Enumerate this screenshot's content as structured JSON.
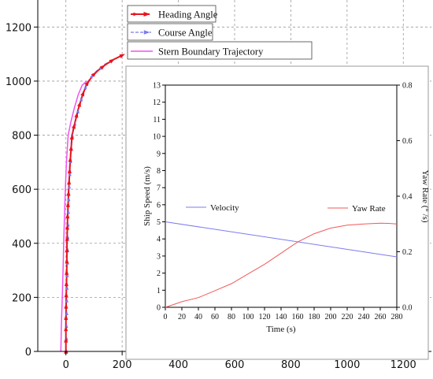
{
  "chart_data": [
    {
      "type": "line",
      "title": "",
      "xlabel": "",
      "ylabel": "",
      "xlim": [
        -100,
        1300
      ],
      "ylim": [
        0,
        1300
      ],
      "x_ticks": [
        0,
        200,
        400,
        600,
        800,
        1000,
        1200
      ],
      "y_ticks": [
        0,
        200,
        400,
        600,
        800,
        1000,
        1200
      ],
      "grid": true,
      "legend_position": "top-center",
      "series": [
        {
          "name": "Heading Angle",
          "color": "#e8141e",
          "marker": "arrow",
          "points": [
            [
              0,
              0
            ],
            [
              0,
              100
            ],
            [
              1,
              200
            ],
            [
              3,
              300
            ],
            [
              4,
              400
            ],
            [
              6,
              500
            ],
            [
              10,
              600
            ],
            [
              15,
              700
            ],
            [
              22,
              800
            ],
            [
              33,
              850
            ],
            [
              45,
              900
            ],
            [
              60,
              950
            ],
            [
              75,
              990
            ],
            [
              95,
              1020
            ],
            [
              115,
              1040
            ],
            [
              140,
              1060
            ],
            [
              170,
              1080
            ],
            [
              200,
              1095
            ]
          ]
        },
        {
          "name": "Course Angle",
          "color": "#7b7bf0",
          "marker": "triangle",
          "points": [
            [
              0,
              0
            ],
            [
              0,
              100
            ],
            [
              1,
              200
            ],
            [
              3,
              300
            ],
            [
              4,
              400
            ],
            [
              6,
              500
            ],
            [
              9,
              600
            ],
            [
              14,
              700
            ],
            [
              21,
              800
            ],
            [
              32,
              850
            ],
            [
              44,
              900
            ],
            [
              58,
              950
            ],
            [
              73,
              990
            ],
            [
              92,
              1020
            ],
            [
              112,
              1040
            ],
            [
              135,
              1060
            ],
            [
              160,
              1075
            ]
          ]
        },
        {
          "name": "Stern Boundary Trajectory",
          "color": "#f052f0",
          "marker": "none",
          "points": [
            [
              -18,
              0
            ],
            [
              -16,
              100
            ],
            [
              -13,
              200
            ],
            [
              -10,
              300
            ],
            [
              -8,
              400
            ],
            [
              -5,
              500
            ],
            [
              -2,
              600
            ],
            [
              2,
              700
            ],
            [
              8,
              800
            ],
            [
              18,
              850
            ],
            [
              30,
              900
            ],
            [
              44,
              950
            ],
            [
              58,
              985
            ],
            [
              74,
              1000
            ]
          ]
        }
      ]
    },
    {
      "type": "line",
      "title": "",
      "xlabel": "Time (s)",
      "ylabel": "Ship Speed (m/s)",
      "y2label": "Yaw Rate (° /s)",
      "xlim": [
        0,
        280
      ],
      "ylim": [
        0,
        13
      ],
      "y2lim": [
        0,
        0.8
      ],
      "x_ticks": [
        0,
        20,
        40,
        60,
        80,
        100,
        120,
        140,
        160,
        180,
        200,
        220,
        240,
        260,
        280
      ],
      "y_ticks": [
        0,
        1,
        2,
        3,
        4,
        5,
        6,
        7,
        8,
        9,
        10,
        11,
        12,
        13
      ],
      "y2_ticks": [
        0.0,
        0.2,
        0.4,
        0.6,
        0.8
      ],
      "grid": false,
      "series": [
        {
          "name": "Velocity",
          "axis": "left",
          "color": "#7b7bf0",
          "label_side": "left",
          "points": [
            [
              0,
              5.0
            ],
            [
              280,
              2.95
            ]
          ]
        },
        {
          "name": "Yaw Rate",
          "axis": "right",
          "color": "#f05a5a",
          "label_side": "right",
          "points": [
            [
              0,
              0.0
            ],
            [
              10,
              0.01
            ],
            [
              20,
              0.02
            ],
            [
              40,
              0.035
            ],
            [
              60,
              0.06
            ],
            [
              80,
              0.085
            ],
            [
              100,
              0.12
            ],
            [
              120,
              0.155
            ],
            [
              140,
              0.195
            ],
            [
              160,
              0.235
            ],
            [
              180,
              0.265
            ],
            [
              200,
              0.285
            ],
            [
              220,
              0.296
            ],
            [
              240,
              0.3
            ],
            [
              260,
              0.303
            ],
            [
              270,
              0.302
            ],
            [
              280,
              0.3
            ]
          ]
        }
      ]
    }
  ]
}
